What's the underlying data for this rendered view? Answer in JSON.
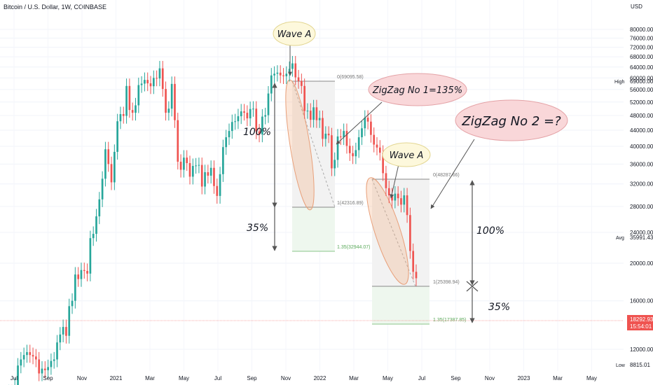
{
  "header": {
    "title": "Bitcoin / U.S. Dollar, 1W, COINBASE"
  },
  "axis": {
    "currency": "USD",
    "yticks": [
      "80000.00",
      "76000.00",
      "72000.00",
      "68000.00",
      "64000.00",
      "60000.00",
      "56000.00",
      "52000.00",
      "48000.00",
      "44000.00",
      "40000.00",
      "36000.00",
      "32000.00",
      "28000.00",
      "24000.00",
      "20000.00",
      "16000.00",
      "12000.00"
    ],
    "xticks": [
      "Jul",
      "Sep",
      "Nov",
      "2021",
      "Mar",
      "May",
      "Jul",
      "Sep",
      "Nov",
      "2022",
      "Mar",
      "May",
      "Jul",
      "Sep",
      "Nov",
      "2023",
      "Mar",
      "May"
    ]
  },
  "badges": {
    "high_label": "High",
    "high_value": "69000.00",
    "avg_label": "Avg",
    "avg_value": "35991.43",
    "low_label": "Low",
    "low_value": "8815.01",
    "last_price": "18292.93",
    "countdown": "15:54:01"
  },
  "fib1": {
    "top": "0(69095.58)",
    "mid": "1(42316.89)",
    "ext": "1.35(32944.07)"
  },
  "fib2": {
    "top": "0(48287.66)",
    "mid": "1(25398.94)",
    "ext": "1.35(17387.85)"
  },
  "annotations": {
    "wave_a_1": "Wave A",
    "wave_a_2": "Wave A",
    "zigzag1": "ZigZag No 1=135%",
    "zigzag2": "ZigZag No 2 =?",
    "pct100_left": "100%",
    "pct35_left": "35%",
    "pct100_right": "100%",
    "pct35_right": "35%"
  },
  "colors": {
    "up": "#26a69a",
    "down": "#ef5350",
    "bubble_yellow": "#fdf8dc",
    "bubble_pink": "#f9d7d9"
  },
  "chart_data": {
    "type": "candlestick",
    "symbol": "Bitcoin / U.S. Dollar",
    "interval": "1W",
    "exchange": "COINBASE",
    "ylim": [
      8815,
      84000
    ],
    "weekly_close": [
      9200,
      9250,
      9300,
      9280,
      9700,
      10900,
      11300,
      11600,
      11800,
      11600,
      11500,
      11300,
      10400,
      10700,
      10600,
      10800,
      11200,
      11300,
      12500,
      13100,
      13700,
      13000,
      15500,
      16000,
      18700,
      18200,
      19200,
      19100,
      18800,
      23200,
      23800,
      26400,
      29200,
      33000,
      39300,
      36000,
      32300,
      38700,
      46400,
      48400,
      47900,
      57200,
      49600,
      48800,
      51000,
      57500,
      58000,
      59300,
      58100,
      57100,
      60000,
      59800,
      63500,
      56200,
      48800,
      50000,
      57900,
      46700,
      36500,
      34800,
      37400,
      36200,
      33400,
      35600,
      35700,
      35800,
      31500,
      34300,
      33600,
      35200,
      31600,
      29800,
      33900,
      39800,
      42200,
      43800,
      46200,
      46400,
      47800,
      49200,
      48800,
      47200,
      49900,
      50000,
      43700,
      42900,
      47700,
      48100,
      54700,
      60900,
      61500,
      61900,
      60900,
      60600,
      61500,
      63300,
      65400,
      60200,
      58900,
      57200,
      49300,
      49400,
      46800,
      50400,
      46700,
      47300,
      41800,
      43100,
      42700,
      35100,
      36900,
      42400,
      42200,
      43800,
      40100,
      38400,
      37700,
      39100,
      42200,
      44500,
      47400,
      46300,
      42800,
      40400,
      39700,
      38500,
      34100,
      31200,
      29900,
      29000,
      30200,
      29400,
      28300,
      29900,
      26600,
      21500,
      19000,
      18293
    ],
    "fib_zigzag_1": {
      "level_0": 69095.58,
      "level_1": 42316.89,
      "level_1_35": 32944.07
    },
    "fib_zigzag_2": {
      "level_0": 48287.66,
      "level_1": 25398.94,
      "level_1_35": 17387.85
    }
  }
}
